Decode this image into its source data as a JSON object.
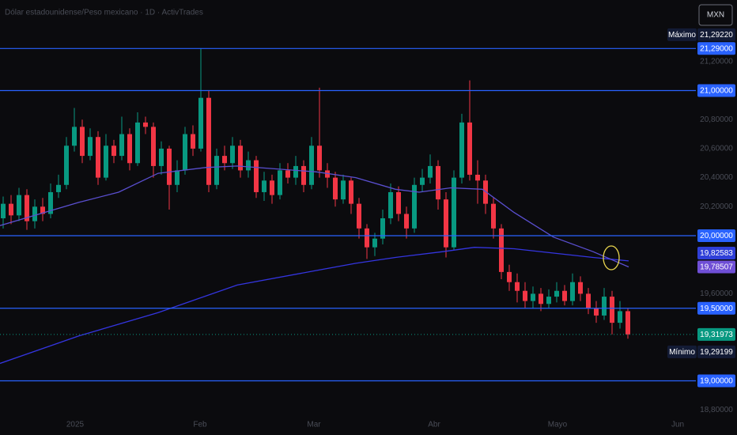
{
  "chart_data": {
    "type": "candlestick",
    "title": "Dólar estadounidense/Peso mexicano · 1D · ActivTrades",
    "currency": "MXN",
    "up_color": "#089981",
    "down_color": "#f23645",
    "open": [
      20.12,
      20.22,
      20.14,
      20.28,
      20.1,
      20.2,
      20.15,
      20.3,
      20.35,
      20.62,
      20.75,
      20.55,
      20.68,
      20.4,
      20.62,
      20.55,
      20.7,
      20.5,
      20.78,
      20.75,
      20.48,
      20.6,
      20.35,
      20.45,
      20.7,
      20.6,
      20.95,
      20.35,
      20.55,
      20.5,
      20.62,
      20.45,
      20.52,
      20.3,
      20.38,
      20.28,
      20.45,
      20.4,
      20.48,
      20.35,
      20.62,
      20.45,
      20.4,
      20.25,
      20.38,
      20.22,
      20.05,
      19.92,
      19.98,
      20.12,
      20.3,
      20.15,
      20.05,
      20.35,
      20.4,
      20.48,
      20.25,
      19.92,
      20.4,
      20.78,
      20.42,
      20.38,
      20.22,
      20.05,
      19.75,
      19.68,
      19.62,
      19.55,
      19.6,
      19.53,
      19.58,
      19.62,
      19.55,
      19.68,
      19.6,
      19.5,
      19.45,
      19.58,
      19.4,
      19.48
    ],
    "high": [
      20.27,
      20.28,
      20.33,
      20.32,
      20.25,
      20.26,
      20.36,
      20.42,
      20.68,
      20.88,
      20.8,
      20.74,
      20.72,
      20.7,
      20.66,
      20.82,
      20.74,
      20.85,
      20.82,
      20.78,
      20.65,
      20.62,
      20.52,
      20.75,
      20.76,
      21.29,
      21.0,
      20.6,
      20.62,
      20.68,
      20.66,
      20.58,
      20.55,
      20.44,
      20.42,
      20.5,
      20.5,
      20.55,
      20.52,
      20.68,
      21.02,
      20.5,
      20.44,
      20.42,
      20.4,
      20.26,
      20.08,
      20.02,
      20.18,
      20.36,
      20.34,
      20.2,
      20.4,
      20.46,
      20.56,
      20.52,
      20.3,
      20.45,
      20.84,
      21.07,
      20.52,
      20.42,
      20.26,
      20.08,
      19.8,
      19.74,
      19.68,
      19.65,
      19.64,
      19.63,
      19.68,
      19.66,
      19.74,
      19.72,
      19.64,
      19.55,
      19.64,
      19.62,
      19.55,
      19.5
    ],
    "low": [
      20.05,
      20.08,
      20.1,
      20.04,
      20.05,
      20.1,
      20.12,
      20.26,
      20.32,
      20.58,
      20.5,
      20.52,
      20.35,
      20.38,
      20.5,
      20.52,
      20.45,
      20.48,
      20.7,
      20.4,
      20.42,
      20.18,
      20.3,
      20.42,
      20.55,
      20.58,
      20.3,
      20.32,
      20.45,
      20.46,
      20.4,
      20.4,
      20.26,
      20.24,
      20.22,
      20.25,
      20.36,
      20.35,
      20.3,
      20.32,
      20.4,
      20.33,
      20.2,
      20.22,
      20.15,
      19.98,
      19.84,
      19.86,
      19.94,
      20.08,
      20.1,
      19.98,
      20.02,
      20.3,
      20.36,
      20.18,
      19.85,
      19.9,
      20.36,
      20.38,
      20.22,
      20.15,
      19.98,
      19.7,
      19.62,
      19.54,
      19.5,
      19.5,
      19.48,
      19.5,
      19.54,
      19.52,
      19.52,
      19.55,
      19.46,
      19.4,
      19.42,
      19.32,
      19.36,
      19.29
    ],
    "close": [
      20.22,
      20.14,
      20.28,
      20.1,
      20.2,
      20.15,
      20.3,
      20.35,
      20.62,
      20.75,
      20.55,
      20.68,
      20.4,
      20.62,
      20.55,
      20.7,
      20.5,
      20.78,
      20.75,
      20.48,
      20.6,
      20.35,
      20.45,
      20.7,
      20.6,
      20.95,
      20.35,
      20.55,
      20.5,
      20.62,
      20.45,
      20.52,
      20.3,
      20.38,
      20.28,
      20.45,
      20.4,
      20.48,
      20.35,
      20.62,
      20.45,
      20.4,
      20.25,
      20.38,
      20.22,
      20.05,
      19.92,
      19.98,
      20.12,
      20.3,
      20.15,
      20.05,
      20.35,
      20.4,
      20.48,
      20.25,
      19.92,
      20.4,
      20.78,
      20.42,
      20.38,
      20.22,
      20.05,
      19.75,
      19.68,
      19.62,
      19.55,
      19.6,
      19.53,
      19.58,
      19.62,
      19.55,
      19.68,
      19.6,
      19.5,
      19.45,
      19.58,
      19.4,
      19.48,
      19.32
    ],
    "xlim": [
      -0.4,
      87.6
    ],
    "xticks": [
      {
        "value": 9.1,
        "label": "2025"
      },
      {
        "value": 24.9,
        "label": "Feb"
      },
      {
        "value": 39.3,
        "label": "Mar"
      },
      {
        "value": 54.5,
        "label": "Abr"
      },
      {
        "value": 70.1,
        "label": "Mayo"
      },
      {
        "value": 85.3,
        "label": "Jun"
      }
    ],
    "ylim": [
      18.763,
      21.624
    ],
    "yticks": [
      {
        "value": 21.2,
        "label": "21,20000"
      },
      {
        "value": 20.8,
        "label": "20,80000"
      },
      {
        "value": 20.6,
        "label": "20,60000"
      },
      {
        "value": 20.4,
        "label": "20,40000"
      },
      {
        "value": 20.2,
        "label": "20,20000"
      },
      {
        "value": 19.6,
        "label": "19,60000"
      },
      {
        "value": 18.8,
        "label": "18,80000"
      }
    ],
    "grid": false,
    "lines": [
      {
        "color": "#3435e0",
        "x": [
          -0.4,
          9.6,
          19.6,
          29.6,
          39.6,
          44.6,
          49.6,
          55.6,
          59.6,
          64.6,
          69.6,
          74.6,
          79.1
        ],
        "values": [
          19.12,
          19.31,
          19.47,
          19.66,
          19.76,
          19.81,
          19.85,
          19.89,
          19.92,
          19.91,
          19.88,
          19.85,
          19.826
        ]
      },
      {
        "color": "#5a4fd0",
        "x": [
          -0.4,
          9.6,
          14.6,
          19.6,
          25.6,
          29.6,
          39.6,
          44.6,
          49.6,
          52.6,
          56.6,
          60.6,
          64.6,
          69.6,
          74.6,
          79.1
        ],
        "values": [
          20.07,
          20.23,
          20.3,
          20.43,
          20.47,
          20.48,
          20.44,
          20.4,
          20.32,
          20.3,
          20.33,
          20.32,
          20.16,
          19.99,
          19.89,
          19.785
        ]
      }
    ],
    "hlines": {
      "color": "#2962ff",
      "levels": [
        {
          "value": 21.29,
          "label": "21,29000"
        },
        {
          "value": 21.0,
          "label": "21,00000"
        },
        {
          "value": 20.0,
          "label": "20,00000"
        },
        {
          "value": 19.5,
          "label": "19,50000"
        },
        {
          "value": 19.0,
          "label": "19,00000"
        }
      ]
    },
    "last_price": {
      "value": 19.31973,
      "label": "19,31973",
      "color": "#089981"
    },
    "ma_labels": [
      {
        "value": 19.82583,
        "label": "19,82583",
        "color": "#2f3fd8"
      },
      {
        "value": 19.78507,
        "label": "19,78507",
        "color": "#6f4fd6"
      }
    ],
    "extremes": [
      {
        "text": "Máximo",
        "value": 21.2922,
        "label": "21,29220",
        "offset": -1
      },
      {
        "text": "Mínimo",
        "value": 19.29199,
        "label": "19,29199",
        "offset": 1
      }
    ]
  }
}
